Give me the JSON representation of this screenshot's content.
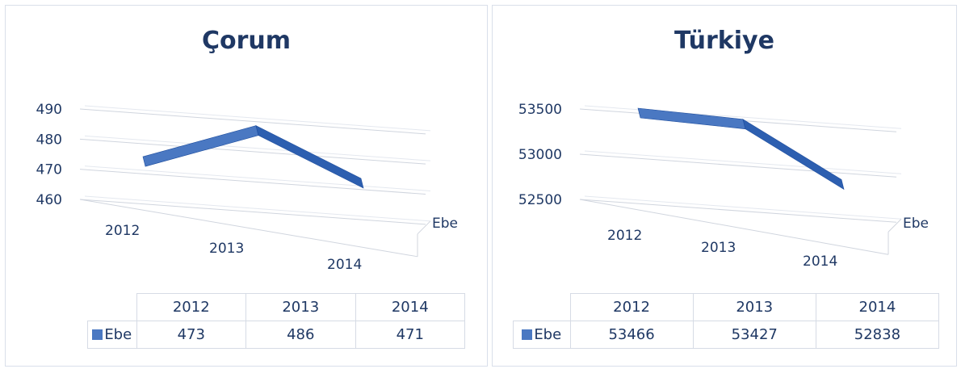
{
  "chart_data": [
    {
      "type": "line",
      "style": "3d-ribbon",
      "title": "Çorum",
      "categories": [
        "2012",
        "2013",
        "2014"
      ],
      "yticks": [
        "490",
        "480",
        "470",
        "460"
      ],
      "ylim": [
        460,
        490
      ],
      "series": [
        {
          "name": "Ebe",
          "values": [
            473,
            486,
            471
          ]
        }
      ],
      "data_table": {
        "header": [
          "2012",
          "2013",
          "2014"
        ],
        "row_label": "Ebe",
        "values": [
          "473",
          "486",
          "471"
        ]
      },
      "grid": true,
      "colors": {
        "series": "#4a78c2",
        "series_dark": "#1f4e9e",
        "text": "#1f3864"
      }
    },
    {
      "type": "line",
      "style": "3d-ribbon",
      "title": "Türkiye",
      "categories": [
        "2012",
        "2013",
        "2014"
      ],
      "yticks": [
        "53500",
        "53000",
        "52500"
      ],
      "ylim": [
        52500,
        53500
      ],
      "series": [
        {
          "name": "Ebe",
          "values": [
            53466,
            53427,
            52838
          ]
        }
      ],
      "data_table": {
        "header": [
          "2012",
          "2013",
          "2014"
        ],
        "row_label": "Ebe",
        "values": [
          "53466",
          "53427",
          "52838"
        ]
      },
      "grid": true,
      "colors": {
        "series": "#4a78c2",
        "series_dark": "#1f4e9e",
        "text": "#1f3864"
      }
    }
  ]
}
